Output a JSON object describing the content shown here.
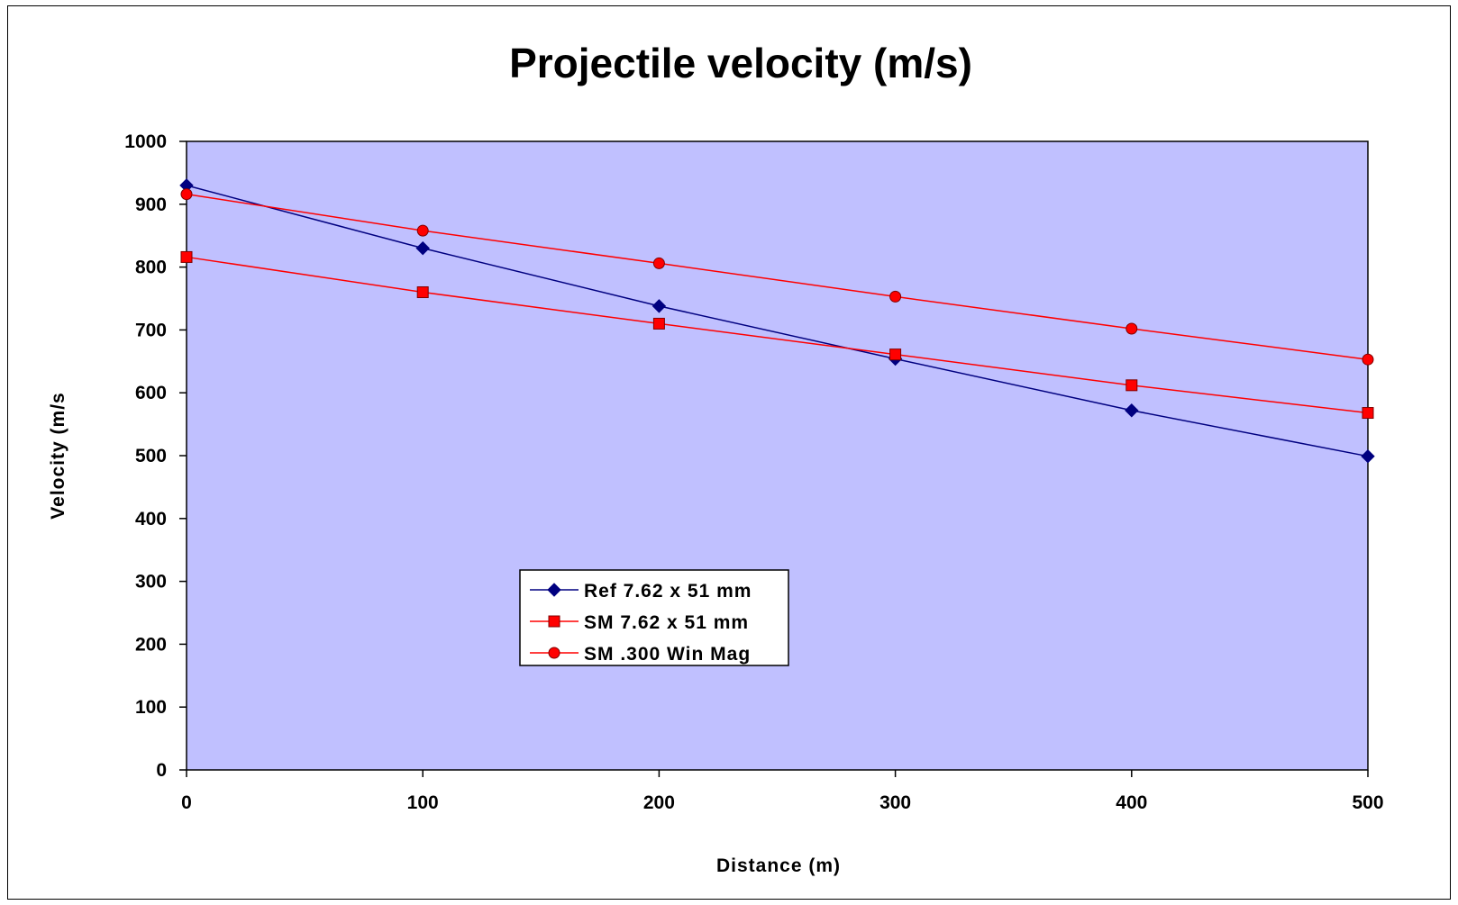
{
  "chart_data": {
    "type": "line",
    "title": "Projectile velocity (m/s)",
    "xlabel": "Distance (m)",
    "ylabel": "Velocity (m/s",
    "x": [
      0,
      100,
      200,
      300,
      400,
      500
    ],
    "xlim": [
      0,
      500
    ],
    "ylim": [
      0,
      1000
    ],
    "xticks": [
      0,
      100,
      200,
      300,
      400,
      500
    ],
    "yticks": [
      0,
      100,
      200,
      300,
      400,
      500,
      600,
      700,
      800,
      900,
      1000
    ],
    "plot_background": "#C0C0FF",
    "grid": false,
    "legend_position": "center-left",
    "series": [
      {
        "name": "Ref 7.62 x 51 mm",
        "values": [
          930,
          830,
          738,
          654,
          572,
          499
        ],
        "color": "#000080",
        "marker": "diamond"
      },
      {
        "name": "SM 7.62 x 51 mm",
        "values": [
          816,
          760,
          710,
          661,
          612,
          568
        ],
        "color": "#FF0000",
        "marker": "square"
      },
      {
        "name": "SM .300 Win Mag",
        "values": [
          916,
          858,
          806,
          753,
          702,
          653
        ],
        "color": "#FF0000",
        "marker": "circle"
      }
    ]
  }
}
